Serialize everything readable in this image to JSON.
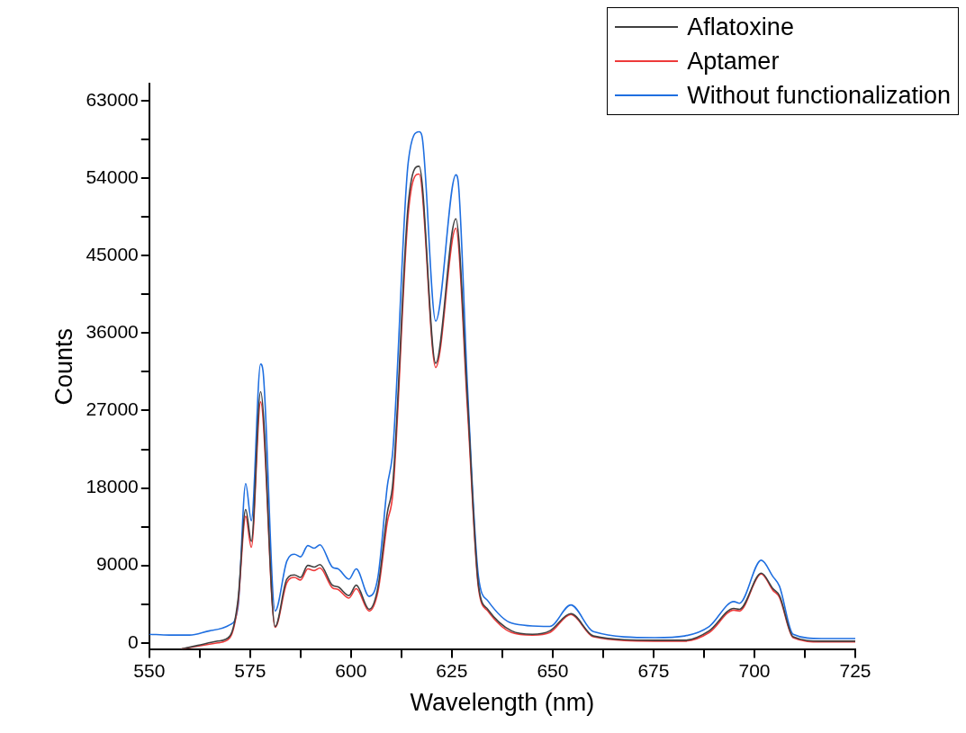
{
  "chart_data": {
    "type": "line",
    "xlabel": "Wavelength (nm)",
    "ylabel": "Counts",
    "xlim": [
      550,
      725
    ],
    "ylim": [
      -800,
      65000
    ],
    "xticks": [
      550,
      {
        "value": 562.5,
        "label": null
      },
      575,
      {
        "value": 587.5,
        "label": null
      },
      600,
      {
        "value": 612.5,
        "label": null
      },
      625,
      {
        "value": 637.5,
        "label": null
      },
      650,
      {
        "value": 662.5,
        "label": null
      },
      675,
      {
        "value": 687.5,
        "label": null
      },
      700,
      {
        "value": 712.5,
        "label": null
      },
      725
    ],
    "yticks": [
      0,
      {
        "value": 4500,
        "label": null
      },
      9000,
      {
        "value": 13500,
        "label": null
      },
      18000,
      {
        "value": 22500,
        "label": null
      },
      27000,
      {
        "value": 31500,
        "label": null
      },
      36000,
      {
        "value": 40500,
        "label": null
      },
      45000,
      {
        "value": 49500,
        "label": null
      },
      54000,
      {
        "value": 58500,
        "label": null
      },
      63000
    ],
    "grid": false,
    "legend": "top right",
    "marker": "none",
    "line_style": "solid",
    "series": [
      {
        "name": "Aflatoxine",
        "color": "#404040",
        "x": [
          558,
          562,
          567,
          570,
          572,
          573.9,
          575.3,
          577.6,
          581.2,
          584.1,
          586,
          587.5,
          589.3,
          590.9,
          592.3,
          595.4,
          596.8,
          599.5,
          601.3,
          604.5,
          606.7,
          609,
          610.4,
          614.2,
          616.9,
          621,
          626,
          628.9,
          631.6,
          633.9,
          639.8,
          645,
          649.3,
          654.5,
          660.1,
          675.3,
          682.7,
          688.8,
          694.9,
          696.3,
          701.7,
          704.6,
          706.2,
          709.6,
          716.6,
          725
        ],
        "values": [
          -700,
          -300,
          200,
          800,
          5000,
          15500,
          11800,
          29200,
          1900,
          7400,
          7900,
          7600,
          9000,
          8800,
          9100,
          6700,
          6500,
          5500,
          6700,
          3900,
          6500,
          15100,
          18700,
          51000,
          55400,
          32500,
          49300,
          28000,
          6700,
          3900,
          1400,
          1000,
          1400,
          3400,
          800,
          300,
          300,
          1400,
          4000,
          3900,
          8100,
          6300,
          5500,
          700,
          200,
          200
        ]
      },
      {
        "name": "Aptamer",
        "color": "#ee3a3a",
        "x": [
          558,
          562,
          567,
          570,
          572,
          573.9,
          575.3,
          577.6,
          581.2,
          584.1,
          586,
          587.5,
          589.3,
          590.9,
          592.3,
          595.4,
          596.8,
          599.5,
          601.3,
          604.5,
          606.7,
          609,
          610.4,
          614.2,
          616.9,
          621,
          626,
          628.9,
          631.6,
          633.9,
          639.8,
          645,
          649.3,
          654.5,
          660.1,
          675.3,
          682.7,
          688.8,
          694.9,
          696.3,
          701.7,
          704.6,
          706.2,
          709.6,
          716.6,
          725
        ],
        "values": [
          -700,
          -400,
          0,
          600,
          4600,
          14700,
          11100,
          28000,
          1800,
          7000,
          7600,
          7300,
          8600,
          8400,
          8700,
          6400,
          6200,
          5200,
          6300,
          3700,
          6000,
          14000,
          17500,
          49900,
          54500,
          32000,
          48200,
          27000,
          6400,
          3700,
          1200,
          900,
          1200,
          3300,
          700,
          200,
          200,
          1200,
          3800,
          3700,
          8000,
          6100,
          5300,
          600,
          100,
          100
        ]
      },
      {
        "name": "Without functionalization",
        "color": "#1f6fe0",
        "x": [
          550,
          555,
          560,
          565,
          570,
          572,
          573.9,
          575.3,
          577.6,
          578.2,
          581.2,
          584.1,
          586,
          587.5,
          589.3,
          590.9,
          592.3,
          595.4,
          596.8,
          599.5,
          601.3,
          604.5,
          606.7,
          609,
          610.4,
          614.2,
          616.9,
          617.6,
          621,
          626,
          626.6,
          628.9,
          631.6,
          633.9,
          639.8,
          649.3,
          654.5,
          660.1,
          675.3,
          682.7,
          688.8,
          694.9,
          696.3,
          701.7,
          704.6,
          706.2,
          709.6,
          716.6,
          725
        ],
        "values": [
          1000,
          900,
          900,
          1400,
          2100,
          4200,
          18500,
          14200,
          32400,
          31600,
          3700,
          9500,
          10300,
          10000,
          11300,
          11000,
          11400,
          8800,
          8600,
          7400,
          8600,
          5400,
          7700,
          18200,
          22500,
          55900,
          59400,
          58900,
          37400,
          54400,
          53500,
          29500,
          7700,
          4900,
          2300,
          1900,
          4400,
          1300,
          600,
          800,
          1900,
          4800,
          4600,
          9600,
          7700,
          6600,
          1000,
          500,
          500
        ]
      }
    ]
  }
}
